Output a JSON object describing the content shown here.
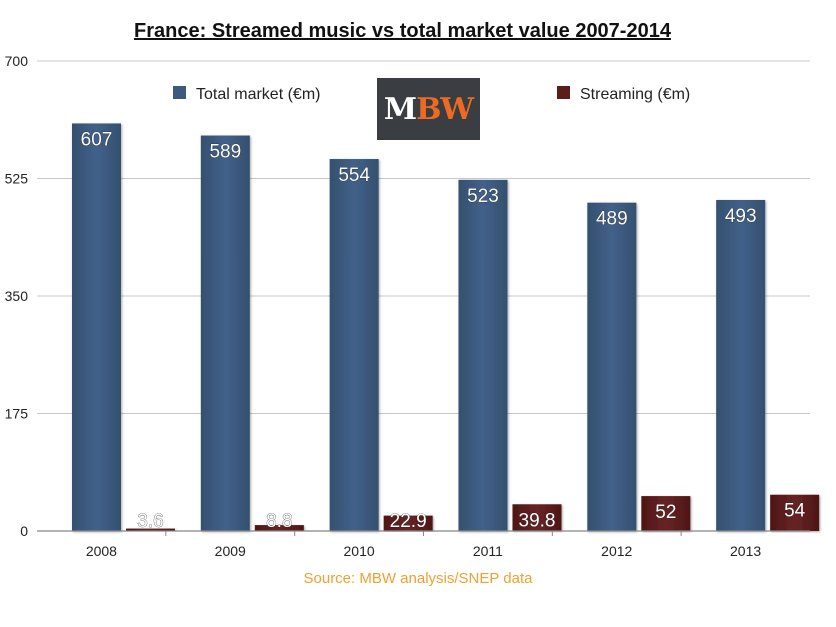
{
  "chart_data": {
    "type": "bar",
    "title": "France: Streamed music vs total market value 2007-2014",
    "categories": [
      "2008",
      "2009",
      "2010",
      "2011",
      "2012",
      "2013"
    ],
    "series": [
      {
        "name": "Total market (€m)",
        "values": [
          607,
          589,
          554,
          523,
          489,
          493
        ],
        "labels": [
          "607",
          "589",
          "554",
          "523",
          "489",
          "493"
        ],
        "color": "#3c5a7e"
      },
      {
        "name": "Streaming (€m)",
        "values": [
          3.6,
          8.8,
          22.9,
          39.8,
          52,
          54
        ],
        "labels": [
          "3.6",
          "8.8",
          "22.9",
          "39.8",
          "52",
          "54"
        ],
        "color": "#5c1c1c"
      }
    ],
    "ylim": [
      0,
      700
    ],
    "yticks": [
      "0",
      "175",
      "350",
      "525",
      "700"
    ],
    "grid": true,
    "legend_position": "top",
    "xlabel": "",
    "ylabel": ""
  },
  "logo": {
    "text": "MBW",
    "part1": "M",
    "part2": "BW"
  },
  "source": "Source: MBW analysis/SNEP data"
}
